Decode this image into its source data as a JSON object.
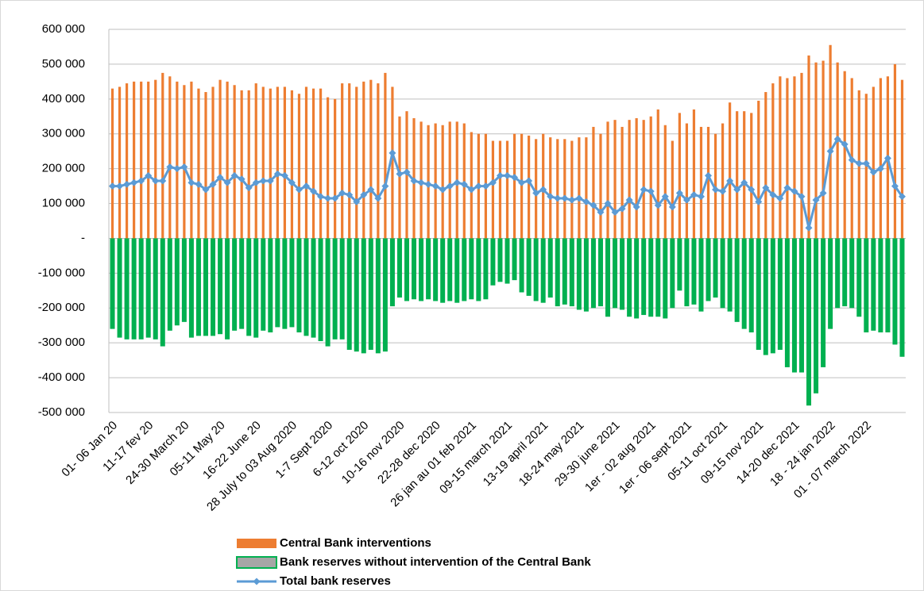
{
  "chart_data": {
    "type": "combo",
    "categories": [
      "01- 06 Jan 20",
      null,
      null,
      null,
      null,
      "11-17 fev 20",
      null,
      null,
      null,
      null,
      "24-30 March 20",
      null,
      null,
      null,
      null,
      "05-11 May 20",
      null,
      null,
      null,
      null,
      "16-22 June 20",
      null,
      null,
      null,
      null,
      "28 July to 03 Aug 2020",
      null,
      null,
      null,
      null,
      "1-7 Sept 2020",
      null,
      null,
      null,
      null,
      "6-12 oct 2020",
      null,
      null,
      null,
      null,
      "10-16 nov 2020",
      null,
      null,
      null,
      null,
      "22-28 dec 2020",
      null,
      null,
      null,
      null,
      "26 jan au 01 feb 2021",
      null,
      null,
      null,
      null,
      "09-15 march 2021",
      null,
      null,
      null,
      null,
      "13-19 april 2021",
      null,
      null,
      null,
      null,
      "18-24 may 2021",
      null,
      null,
      null,
      null,
      "29-30 june 2021",
      null,
      null,
      null,
      null,
      "1er - 02 aug 2021",
      null,
      null,
      null,
      null,
      "1er - 06 sept 2021",
      null,
      null,
      null,
      null,
      "05-11 oct 2021",
      null,
      null,
      null,
      null,
      "09-15 nov 2021",
      null,
      null,
      null,
      null,
      "14-20 dec 2021",
      null,
      null,
      null,
      null,
      "18 - 24 jan 2022",
      null,
      null,
      null,
      null,
      "01 - 07 march 2022",
      null,
      null,
      null,
      null,
      null
    ],
    "series": [
      {
        "name": "Central Bank interventions",
        "kind": "bar",
        "color": "#ED7D31",
        "values": [
          430000,
          435000,
          445000,
          450000,
          450000,
          450000,
          455000,
          475000,
          465000,
          450000,
          440000,
          450000,
          430000,
          420000,
          435000,
          455000,
          450000,
          440000,
          425000,
          425000,
          445000,
          435000,
          430000,
          435000,
          435000,
          425000,
          415000,
          435000,
          430000,
          430000,
          405000,
          400000,
          445000,
          445000,
          435000,
          450000,
          455000,
          445000,
          475000,
          435000,
          350000,
          365000,
          345000,
          335000,
          325000,
          330000,
          325000,
          335000,
          335000,
          330000,
          305000,
          300000,
          300000,
          280000,
          280000,
          280000,
          300000,
          300000,
          295000,
          285000,
          300000,
          290000,
          285000,
          285000,
          280000,
          290000,
          290000,
          320000,
          300000,
          335000,
          340000,
          320000,
          340000,
          345000,
          340000,
          350000,
          370000,
          325000,
          280000,
          360000,
          330000,
          370000,
          320000,
          320000,
          300000,
          330000,
          390000,
          365000,
          365000,
          360000,
          395000,
          420000,
          445000,
          465000,
          460000,
          465000,
          475000,
          525000,
          505000,
          510000,
          555000,
          505000,
          480000,
          460000,
          425000,
          415000,
          435000,
          460000,
          465000,
          500000,
          455000
        ]
      },
      {
        "name": "Bank reserves without intervention of the Central Bank",
        "kind": "bar",
        "color": "#00B050",
        "values": [
          -260000,
          -285000,
          -290000,
          -290000,
          -290000,
          -285000,
          -290000,
          -310000,
          -265000,
          -250000,
          -240000,
          -285000,
          -280000,
          -280000,
          -280000,
          -275000,
          -290000,
          -265000,
          -260000,
          -280000,
          -285000,
          -265000,
          -270000,
          -255000,
          -260000,
          -255000,
          -270000,
          -280000,
          -285000,
          -295000,
          -310000,
          -290000,
          -290000,
          -320000,
          -325000,
          -330000,
          -320000,
          -330000,
          -325000,
          -195000,
          -170000,
          -180000,
          -175000,
          -180000,
          -175000,
          -180000,
          -185000,
          -180000,
          -185000,
          -180000,
          -175000,
          -180000,
          -175000,
          -135000,
          -125000,
          -130000,
          -120000,
          -155000,
          -165000,
          -180000,
          -185000,
          -170000,
          -195000,
          -190000,
          -195000,
          -205000,
          -210000,
          -200000,
          -195000,
          -225000,
          -200000,
          -205000,
          -225000,
          -230000,
          -220000,
          -225000,
          -225000,
          -230000,
          -200000,
          -150000,
          -195000,
          -190000,
          -210000,
          -180000,
          -170000,
          -200000,
          -210000,
          -240000,
          -260000,
          -270000,
          -320000,
          -335000,
          -330000,
          -320000,
          -370000,
          -385000,
          -385000,
          -480000,
          -445000,
          -370000,
          -260000,
          -200000,
          -195000,
          -200000,
          -225000,
          -270000,
          -265000,
          -270000,
          -270000,
          -305000,
          -340000
        ]
      },
      {
        "name": "Total bank reserves",
        "kind": "line",
        "color": "#5B9BD5",
        "values": [
          150000,
          150000,
          155000,
          160000,
          165000,
          180000,
          165000,
          165000,
          205000,
          200000,
          205000,
          160000,
          155000,
          140000,
          155000,
          175000,
          160000,
          180000,
          170000,
          145000,
          160000,
          165000,
          165000,
          185000,
          180000,
          160000,
          140000,
          150000,
          135000,
          120000,
          115000,
          115000,
          130000,
          125000,
          105000,
          125000,
          140000,
          115000,
          150000,
          245000,
          185000,
          190000,
          165000,
          160000,
          155000,
          150000,
          140000,
          150000,
          160000,
          155000,
          140000,
          150000,
          150000,
          160000,
          180000,
          180000,
          175000,
          160000,
          165000,
          130000,
          140000,
          120000,
          115000,
          115000,
          110000,
          115000,
          105000,
          95000,
          75000,
          100000,
          75000,
          85000,
          110000,
          90000,
          140000,
          135000,
          95000,
          120000,
          90000,
          130000,
          110000,
          125000,
          120000,
          180000,
          140000,
          135000,
          165000,
          140000,
          160000,
          140000,
          105000,
          145000,
          125000,
          115000,
          145000,
          135000,
          120000,
          30000,
          110000,
          130000,
          250000,
          285000,
          270000,
          225000,
          215000,
          215000,
          190000,
          200000,
          230000,
          150000,
          120000
        ]
      }
    ],
    "ylim": [
      -500000,
      600000
    ],
    "yticks": [
      {
        "value": -500000,
        "label": "-500 000"
      },
      {
        "value": -400000,
        "label": "-400 000"
      },
      {
        "value": -300000,
        "label": "-300 000"
      },
      {
        "value": -200000,
        "label": "-200 000"
      },
      {
        "value": -100000,
        "label": "-100 000"
      },
      {
        "value": 0,
        "label": "-"
      },
      {
        "value": 100000,
        "label": "100 000"
      },
      {
        "value": 200000,
        "label": "200 000"
      },
      {
        "value": 300000,
        "label": "300 000"
      },
      {
        "value": 400000,
        "label": "400 000"
      },
      {
        "value": 500000,
        "label": "500 000"
      },
      {
        "value": 600000,
        "label": "600 000"
      }
    ],
    "grid": true,
    "legend": "bottom"
  }
}
